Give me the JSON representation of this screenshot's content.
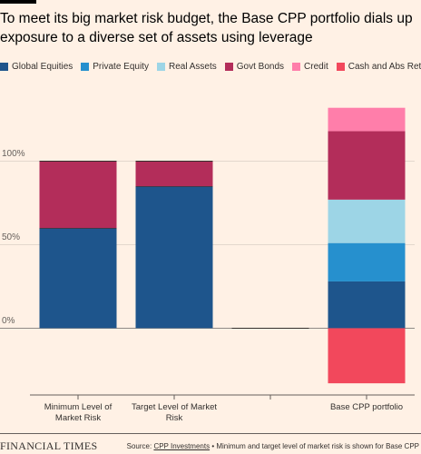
{
  "chart_data": {
    "type": "stacked_bar",
    "title": "To meet its big market risk budget, the Base CPP portfolio dials up exposure to a diverse set of assets using leverage",
    "categories": [
      "Minimum Level of Market Risk",
      "Target Level of Market Risk",
      null,
      "Base CPP portfolio"
    ],
    "series": [
      {
        "name": "Global Equities",
        "color": "#1e558c",
        "values": [
          60,
          85,
          0,
          28
        ]
      },
      {
        "name": "Private Equity",
        "color": "#2690ce",
        "values": [
          0,
          0,
          0,
          23
        ]
      },
      {
        "name": "Real Assets",
        "color": "#9dd5e6",
        "values": [
          0,
          0,
          0,
          26
        ]
      },
      {
        "name": "Govt Bonds",
        "color": "#b32d5a",
        "values": [
          40,
          15,
          0,
          41
        ]
      },
      {
        "name": "Credit",
        "color": "#ff7eaa",
        "values": [
          0,
          0,
          0,
          14
        ]
      },
      {
        "name": "Cash and Abs Ret",
        "color": "#f2485c",
        "values": [
          0,
          0,
          0,
          -33
        ]
      }
    ],
    "ylim": [
      -40,
      140
    ],
    "yticks": [
      {
        "value": 0,
        "label": "0%"
      },
      {
        "value": 50,
        "label": "50%"
      },
      {
        "value": 100,
        "label": "100%"
      }
    ],
    "grid": true,
    "legend": "top",
    "source_prefix": "Source:",
    "source_link": "CPP Investments",
    "note": "• Minimum and target level of market risk is shown for Base CPP",
    "brand": "FINANCIAL TIMES"
  }
}
